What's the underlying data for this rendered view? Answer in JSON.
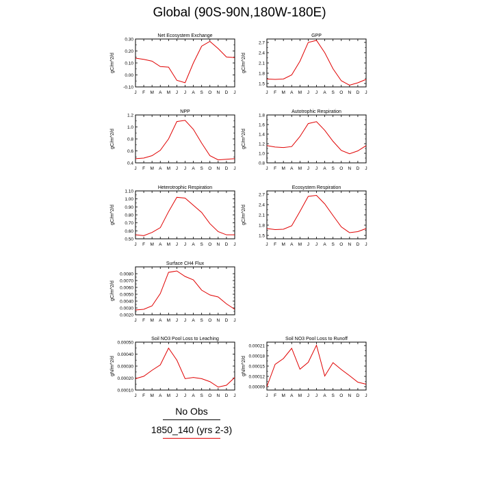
{
  "title": "Global (90S-90N,180W-180E)",
  "legend": {
    "obs_label": "No Obs",
    "case_label": "1850_140 (yrs 2-3)",
    "case_color": "#e00000",
    "obs_color": "#000000"
  },
  "chart_data": [
    {
      "type": "line",
      "title": "Net Ecosystem Exchange",
      "ylabel": "gC/m^2/d",
      "categories": [
        "J",
        "F",
        "M",
        "A",
        "M",
        "J",
        "J",
        "A",
        "S",
        "O",
        "N",
        "D",
        "J"
      ],
      "ylim": [
        -0.1,
        0.3
      ],
      "yticks": [
        -0.1,
        0.0,
        0.1,
        0.2,
        0.3
      ],
      "ytick_labels": [
        "-0.10",
        "0.00",
        "0.10",
        "0.20",
        "0.30"
      ],
      "series": [
        {
          "values": [
            0.14,
            0.13,
            0.115,
            0.07,
            0.065,
            -0.045,
            -0.065,
            0.1,
            0.24,
            0.28,
            0.22,
            0.15,
            0.145
          ]
        }
      ]
    },
    {
      "type": "line",
      "title": "GPP",
      "ylabel": "gC/m^2/d",
      "categories": [
        "J",
        "F",
        "M",
        "A",
        "M",
        "J",
        "J",
        "A",
        "S",
        "O",
        "N",
        "D",
        "J"
      ],
      "ylim": [
        1.4,
        2.8
      ],
      "yticks": [
        1.5,
        1.8,
        2.1,
        2.4,
        2.7
      ],
      "ytick_labels": [
        "1.5",
        "1.8",
        "2.1",
        "2.4",
        "2.7"
      ],
      "series": [
        {
          "values": [
            1.63,
            1.62,
            1.63,
            1.75,
            2.15,
            2.7,
            2.76,
            2.4,
            1.93,
            1.58,
            1.45,
            1.52,
            1.62
          ]
        }
      ]
    },
    {
      "type": "line",
      "title": "NPP",
      "ylabel": "gC/m^2/d",
      "categories": [
        "J",
        "F",
        "M",
        "A",
        "M",
        "J",
        "J",
        "A",
        "S",
        "O",
        "N",
        "D",
        "J"
      ],
      "ylim": [
        0.4,
        1.2
      ],
      "yticks": [
        0.4,
        0.6,
        0.8,
        1.0,
        1.2
      ],
      "ytick_labels": [
        "0.4",
        "0.6",
        "0.8",
        "1.0",
        "1.2"
      ],
      "series": [
        {
          "values": [
            0.47,
            0.48,
            0.52,
            0.61,
            0.8,
            1.09,
            1.11,
            0.96,
            0.73,
            0.52,
            0.45,
            0.46,
            0.47
          ]
        }
      ]
    },
    {
      "type": "line",
      "title": "Autotrophic Respiration",
      "ylabel": "gC/m^2/d",
      "categories": [
        "J",
        "F",
        "M",
        "A",
        "M",
        "J",
        "J",
        "A",
        "S",
        "O",
        "N",
        "D",
        "J"
      ],
      "ylim": [
        0.8,
        1.8
      ],
      "yticks": [
        0.8,
        1.0,
        1.2,
        1.4,
        1.6,
        1.8
      ],
      "ytick_labels": [
        "0.8",
        "1.0",
        "1.2",
        "1.4",
        "1.6",
        "1.8"
      ],
      "series": [
        {
          "values": [
            1.16,
            1.13,
            1.12,
            1.14,
            1.35,
            1.62,
            1.66,
            1.48,
            1.25,
            1.06,
            0.99,
            1.05,
            1.16
          ]
        }
      ]
    },
    {
      "type": "line",
      "title": "Heterotrophic Respiration",
      "ylabel": "gC/m^2/d",
      "categories": [
        "J",
        "F",
        "M",
        "A",
        "M",
        "J",
        "J",
        "A",
        "S",
        "O",
        "N",
        "D",
        "J"
      ],
      "ylim": [
        0.5,
        1.1
      ],
      "yticks": [
        0.5,
        0.6,
        0.7,
        0.8,
        0.9,
        1.0,
        1.1
      ],
      "ytick_labels": [
        "0.50",
        "0.60",
        "0.70",
        "0.80",
        "0.90",
        "1.00",
        "1.10"
      ],
      "series": [
        {
          "values": [
            0.55,
            0.54,
            0.58,
            0.64,
            0.84,
            1.02,
            1.01,
            0.92,
            0.83,
            0.69,
            0.59,
            0.55,
            0.55
          ]
        }
      ]
    },
    {
      "type": "line",
      "title": "Ecosystem Respiration",
      "ylabel": "gC/m^2/d",
      "categories": [
        "J",
        "F",
        "M",
        "A",
        "M",
        "J",
        "J",
        "A",
        "S",
        "O",
        "N",
        "D",
        "J"
      ],
      "ylim": [
        1.4,
        2.8
      ],
      "yticks": [
        1.5,
        1.8,
        2.1,
        2.4,
        2.7
      ],
      "ytick_labels": [
        "1.5",
        "1.8",
        "2.1",
        "2.4",
        "2.7"
      ],
      "series": [
        {
          "values": [
            1.7,
            1.67,
            1.68,
            1.78,
            2.2,
            2.64,
            2.67,
            2.42,
            2.08,
            1.75,
            1.58,
            1.61,
            1.7
          ]
        }
      ]
    },
    {
      "type": "line",
      "title": "Surface CH4 Flux",
      "ylabel": "gC/m^2/d",
      "categories": [
        "J",
        "F",
        "M",
        "A",
        "M",
        "J",
        "J",
        "A",
        "S",
        "O",
        "N",
        "D",
        "J"
      ],
      "ylim": [
        0.002,
        0.009
      ],
      "yticks": [
        0.002,
        0.003,
        0.004,
        0.005,
        0.006,
        0.007,
        0.008
      ],
      "ytick_labels": [
        "0.0020",
        "0.0030",
        "0.0040",
        "0.0050",
        "0.0060",
        "0.0070",
        "0.0080"
      ],
      "series": [
        {
          "values": [
            0.0027,
            0.0028,
            0.0033,
            0.0051,
            0.0082,
            0.0084,
            0.0076,
            0.0071,
            0.0056,
            0.0049,
            0.0046,
            0.0036,
            0.0028
          ]
        }
      ]
    },
    {
      "type": "line",
      "title": "Soil NO3 Pool Loss to Leaching",
      "ylabel": "gN/m^2/d",
      "categories": [
        "J",
        "F",
        "M",
        "A",
        "M",
        "J",
        "J",
        "A",
        "S",
        "O",
        "N",
        "D",
        "J"
      ],
      "ylim": [
        0.0001,
        0.0005
      ],
      "yticks": [
        0.0001,
        0.0002,
        0.0003,
        0.0004,
        0.0005
      ],
      "ytick_labels": [
        "0.00010",
        "0.00020",
        "0.00030",
        "0.00040",
        "0.00050"
      ],
      "series": [
        {
          "values": [
            0.000195,
            0.000215,
            0.000265,
            0.00031,
            0.00045,
            0.00035,
            0.000195,
            0.000205,
            0.000195,
            0.00017,
            0.000125,
            0.00014,
            0.000205
          ]
        }
      ]
    },
    {
      "type": "line",
      "title": "Soil NO3 Pool Loss to Runoff",
      "ylabel": "gN/m^2/d",
      "categories": [
        "J",
        "F",
        "M",
        "A",
        "M",
        "J",
        "J",
        "A",
        "S",
        "O",
        "N",
        "D",
        "J"
      ],
      "ylim": [
        8e-05,
        0.00022
      ],
      "yticks": [
        9e-05,
        0.00012,
        0.00015,
        0.00018,
        0.00021
      ],
      "ytick_labels": [
        "0.00009",
        "0.00012",
        "0.00015",
        "0.00018",
        "0.00021"
      ],
      "series": [
        {
          "values": [
            9e-05,
            0.000155,
            0.000172,
            0.000202,
            0.000141,
            0.000161,
            0.000211,
            0.000121,
            0.00016,
            0.00014,
            0.000122,
            0.000103,
            9.7e-05
          ]
        }
      ]
    }
  ]
}
